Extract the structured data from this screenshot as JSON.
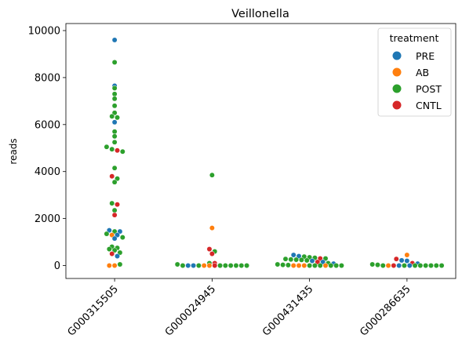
{
  "chart_data": {
    "type": "scatter",
    "subtype": "swarm",
    "title": "Veillonella",
    "xlabel": "",
    "ylabel": "reads",
    "ylim": [
      -550,
      10300
    ],
    "yticks": [
      0,
      2000,
      4000,
      6000,
      8000,
      10000
    ],
    "categories": [
      "G000315505",
      "G000024945",
      "G000431435",
      "G000286635"
    ],
    "legend": {
      "title": "treatment",
      "placement": "top-right",
      "entries": [
        "PRE",
        "AB",
        "POST",
        "CNTL"
      ]
    },
    "colors": {
      "PRE": "#1f77b4",
      "AB": "#ff7f0e",
      "POST": "#2ca02c",
      "CNTL": "#d62728"
    },
    "series": [
      {
        "category": "G000315505",
        "points": [
          {
            "y": 9600,
            "g": "PRE"
          },
          {
            "y": 8650,
            "g": "POST"
          },
          {
            "y": 7650,
            "g": "PRE"
          },
          {
            "y": 7550,
            "g": "POST"
          },
          {
            "y": 7300,
            "g": "POST"
          },
          {
            "y": 7100,
            "g": "POST"
          },
          {
            "y": 6800,
            "g": "POST"
          },
          {
            "y": 6500,
            "g": "POST"
          },
          {
            "y": 6350,
            "g": "POST"
          },
          {
            "y": 6300,
            "g": "POST"
          },
          {
            "y": 6100,
            "g": "PRE"
          },
          {
            "y": 5700,
            "g": "POST"
          },
          {
            "y": 5500,
            "g": "POST"
          },
          {
            "y": 5250,
            "g": "POST"
          },
          {
            "y": 5050,
            "g": "POST"
          },
          {
            "y": 4950,
            "g": "POST"
          },
          {
            "y": 4900,
            "g": "CNTL"
          },
          {
            "y": 4850,
            "g": "POST"
          },
          {
            "y": 4150,
            "g": "POST"
          },
          {
            "y": 3800,
            "g": "CNTL"
          },
          {
            "y": 3700,
            "g": "POST"
          },
          {
            "y": 3550,
            "g": "POST"
          },
          {
            "y": 2650,
            "g": "POST"
          },
          {
            "y": 2600,
            "g": "CNTL"
          },
          {
            "y": 2350,
            "g": "POST"
          },
          {
            "y": 2150,
            "g": "CNTL"
          },
          {
            "y": 1500,
            "g": "PRE"
          },
          {
            "y": 1450,
            "g": "POST"
          },
          {
            "y": 1450,
            "g": "PRE"
          },
          {
            "y": 1350,
            "g": "POST"
          },
          {
            "y": 1300,
            "g": "AB"
          },
          {
            "y": 1300,
            "g": "PRE"
          },
          {
            "y": 1200,
            "g": "POST"
          },
          {
            "y": 1150,
            "g": "PRE"
          },
          {
            "y": 800,
            "g": "POST"
          },
          {
            "y": 750,
            "g": "POST"
          },
          {
            "y": 700,
            "g": "POST"
          },
          {
            "y": 650,
            "g": "POST"
          },
          {
            "y": 550,
            "g": "POST"
          },
          {
            "y": 500,
            "g": "CNTL"
          },
          {
            "y": 400,
            "g": "PRE"
          },
          {
            "y": 0,
            "g": "AB"
          },
          {
            "y": 0,
            "g": "AB"
          },
          {
            "y": 50,
            "g": "POST"
          }
        ]
      },
      {
        "category": "G000024945",
        "points": [
          {
            "y": 3850,
            "g": "POST"
          },
          {
            "y": 1600,
            "g": "AB"
          },
          {
            "y": 700,
            "g": "CNTL"
          },
          {
            "y": 600,
            "g": "POST"
          },
          {
            "y": 500,
            "g": "CNTL"
          },
          {
            "y": 100,
            "g": "POST"
          },
          {
            "y": 100,
            "g": "CNTL"
          },
          {
            "y": 50,
            "g": "POST"
          },
          {
            "y": 0,
            "g": "POST"
          },
          {
            "y": 0,
            "g": "PRE"
          },
          {
            "y": 0,
            "g": "PRE"
          },
          {
            "y": 0,
            "g": "POST"
          },
          {
            "y": 0,
            "g": "AB"
          },
          {
            "y": 0,
            "g": "AB"
          },
          {
            "y": 0,
            "g": "CNTL"
          },
          {
            "y": 0,
            "g": "POST"
          },
          {
            "y": 0,
            "g": "POST"
          },
          {
            "y": 0,
            "g": "POST"
          },
          {
            "y": 0,
            "g": "POST"
          },
          {
            "y": 0,
            "g": "POST"
          },
          {
            "y": 0,
            "g": "POST"
          }
        ]
      },
      {
        "category": "G000431435",
        "points": [
          {
            "y": 450,
            "g": "PRE"
          },
          {
            "y": 400,
            "g": "PRE"
          },
          {
            "y": 380,
            "g": "POST"
          },
          {
            "y": 350,
            "g": "POST"
          },
          {
            "y": 330,
            "g": "POST"
          },
          {
            "y": 300,
            "g": "CNTL"
          },
          {
            "y": 300,
            "g": "POST"
          },
          {
            "y": 280,
            "g": "POST"
          },
          {
            "y": 260,
            "g": "POST"
          },
          {
            "y": 250,
            "g": "POST"
          },
          {
            "y": 240,
            "g": "POST"
          },
          {
            "y": 220,
            "g": "POST"
          },
          {
            "y": 200,
            "g": "PRE"
          },
          {
            "y": 150,
            "g": "CNTL"
          },
          {
            "y": 150,
            "g": "PRE"
          },
          {
            "y": 100,
            "g": "POST"
          },
          {
            "y": 80,
            "g": "PRE"
          },
          {
            "y": 50,
            "g": "POST"
          },
          {
            "y": 30,
            "g": "POST"
          },
          {
            "y": 20,
            "g": "POST"
          },
          {
            "y": 0,
            "g": "AB"
          },
          {
            "y": 0,
            "g": "AB"
          },
          {
            "y": 0,
            "g": "AB"
          },
          {
            "y": 0,
            "g": "POST"
          },
          {
            "y": 0,
            "g": "POST"
          },
          {
            "y": 0,
            "g": "POST"
          },
          {
            "y": 0,
            "g": "AB"
          },
          {
            "y": 0,
            "g": "POST"
          },
          {
            "y": 0,
            "g": "POST"
          },
          {
            "y": 0,
            "g": "POST"
          }
        ]
      },
      {
        "category": "G000286635",
        "points": [
          {
            "y": 450,
            "g": "AB"
          },
          {
            "y": 280,
            "g": "CNTL"
          },
          {
            "y": 220,
            "g": "PRE"
          },
          {
            "y": 200,
            "g": "PRE"
          },
          {
            "y": 100,
            "g": "CNTL"
          },
          {
            "y": 80,
            "g": "PRE"
          },
          {
            "y": 50,
            "g": "POST"
          },
          {
            "y": 30,
            "g": "POST"
          },
          {
            "y": 0,
            "g": "POST"
          },
          {
            "y": 0,
            "g": "AB"
          },
          {
            "y": 0,
            "g": "CNTL"
          },
          {
            "y": 0,
            "g": "PRE"
          },
          {
            "y": 0,
            "g": "POST"
          },
          {
            "y": 0,
            "g": "PRE"
          },
          {
            "y": 0,
            "g": "POST"
          },
          {
            "y": 0,
            "g": "POST"
          },
          {
            "y": 0,
            "g": "POST"
          },
          {
            "y": 0,
            "g": "POST"
          },
          {
            "y": 0,
            "g": "POST"
          },
          {
            "y": 0,
            "g": "POST"
          }
        ]
      }
    ]
  }
}
